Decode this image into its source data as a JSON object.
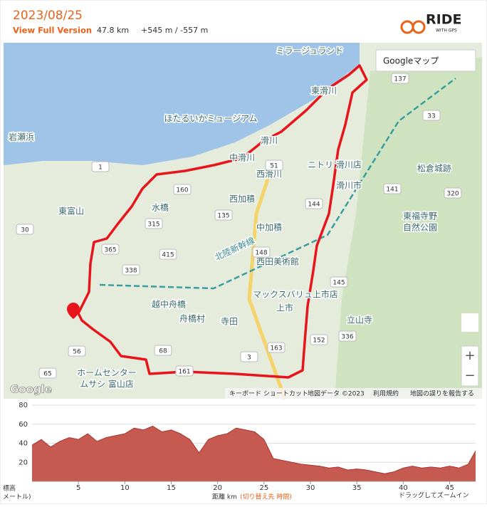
{
  "header": {
    "date": "2023/08/25",
    "link": "View Full Version",
    "distance": "47.8 km",
    "elevation": "+545 m / -557 m",
    "logo": "RIDE",
    "logo_sub": "WITH GPS"
  },
  "map": {
    "type_selector": "Googleマップ",
    "brand": "Google",
    "labels": [
      "ミラージュランド",
      "東滑川",
      "ほたるいかミュージアム",
      "岩瀬浜",
      "滑川",
      "中滑川",
      "ニトリ 滑川店",
      "西滑川",
      "滑川市",
      "松倉城跡",
      "西加積",
      "東富山",
      "水橋",
      "中加積",
      "東福寺野",
      "自然公園",
      "西田美術館",
      "マックスバリュ上市店",
      "越中舟橋",
      "舟橋村",
      "寺田",
      "上市",
      "立山寺",
      "ホームセンター",
      "ムサシ 富山店",
      "北陸新幹線"
    ],
    "roads": [
      "137",
      "33",
      "51",
      "160",
      "144",
      "135",
      "315",
      "415",
      "365",
      "338",
      "148",
      "145",
      "152",
      "336",
      "163",
      "68",
      "3",
      "56",
      "65",
      "1",
      "30",
      "141",
      "320",
      "161"
    ],
    "footer": [
      "キーボード ショートカット",
      "地図データ ©2023",
      "利用規約",
      "地図の誤りを報告する"
    ]
  },
  "chart_data": {
    "type": "area",
    "y_label": "標高",
    "y_label_unit": "メートル)",
    "x_label": "距離 km",
    "x_label_alt": "(切り替え先 時間)",
    "hint": "ドラッグしてズームイン",
    "x": [
      0,
      1,
      2,
      3,
      4,
      5,
      6,
      7,
      8,
      9,
      10,
      11,
      12,
      13,
      14,
      15,
      16,
      17,
      18,
      19,
      20,
      21,
      22,
      23,
      24,
      25,
      26,
      27,
      28,
      29,
      30,
      31,
      32,
      33,
      34,
      35,
      36,
      37,
      38,
      39,
      40,
      41,
      42,
      43,
      44,
      45,
      46,
      47,
      47.8
    ],
    "series": [
      {
        "name": "標高",
        "color": "#c65a50",
        "values": [
          38,
          44,
          36,
          42,
          46,
          44,
          50,
          42,
          46,
          48,
          50,
          56,
          54,
          58,
          52,
          54,
          50,
          44,
          30,
          44,
          48,
          50,
          56,
          54,
          52,
          44,
          24,
          22,
          20,
          18,
          17,
          16,
          14,
          15,
          12,
          13,
          12,
          10,
          8,
          10,
          14,
          16,
          14,
          15,
          14,
          16,
          14,
          18,
          32
        ]
      }
    ],
    "xlim": [
      0,
      47.8
    ],
    "ylim": [
      0,
      80
    ],
    "xticks": [
      5,
      10,
      15,
      20,
      25,
      30,
      35,
      40,
      45
    ],
    "yticks": [
      20,
      40,
      60,
      80
    ]
  }
}
